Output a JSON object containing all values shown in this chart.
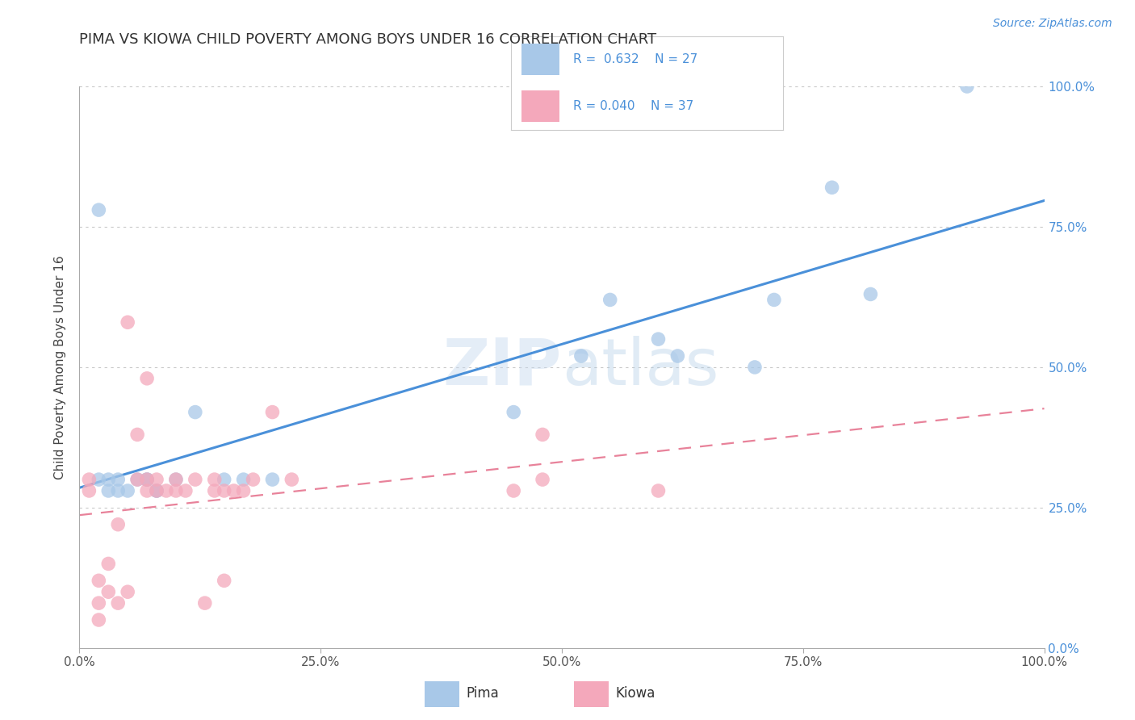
{
  "title": "PIMA VS KIOWA CHILD POVERTY AMONG BOYS UNDER 16 CORRELATION CHART",
  "source": "Source: ZipAtlas.com",
  "ylabel": "Child Poverty Among Boys Under 16",
  "pima_R": 0.632,
  "pima_N": 27,
  "kiowa_R": 0.04,
  "kiowa_N": 37,
  "pima_color": "#A8C8E8",
  "kiowa_color": "#F4A8BB",
  "trendline_pima_color": "#4A90D9",
  "trendline_kiowa_color": "#E8829A",
  "watermark_text": "ZIPatlas",
  "pima_x": [
    0.02,
    0.03,
    0.04,
    0.05,
    0.06,
    0.07,
    0.08,
    0.02,
    0.03,
    0.04,
    0.07,
    0.08,
    0.1,
    0.12,
    0.15,
    0.17,
    0.2,
    0.45,
    0.52,
    0.55,
    0.6,
    0.62,
    0.7,
    0.72,
    0.78,
    0.82,
    0.92
  ],
  "pima_y": [
    0.3,
    0.28,
    0.3,
    0.28,
    0.3,
    0.3,
    0.28,
    0.78,
    0.3,
    0.28,
    0.3,
    0.28,
    0.3,
    0.42,
    0.3,
    0.3,
    0.3,
    0.42,
    0.52,
    0.62,
    0.55,
    0.52,
    0.5,
    0.62,
    0.82,
    0.63,
    1.0
  ],
  "kiowa_x": [
    0.01,
    0.01,
    0.02,
    0.02,
    0.02,
    0.03,
    0.03,
    0.04,
    0.04,
    0.05,
    0.05,
    0.06,
    0.06,
    0.07,
    0.07,
    0.07,
    0.08,
    0.08,
    0.09,
    0.1,
    0.1,
    0.11,
    0.12,
    0.13,
    0.14,
    0.14,
    0.15,
    0.15,
    0.16,
    0.17,
    0.18,
    0.2,
    0.22,
    0.45,
    0.48,
    0.48,
    0.6
  ],
  "kiowa_y": [
    0.28,
    0.3,
    0.05,
    0.08,
    0.12,
    0.1,
    0.15,
    0.08,
    0.22,
    0.58,
    0.1,
    0.3,
    0.38,
    0.48,
    0.28,
    0.3,
    0.28,
    0.3,
    0.28,
    0.28,
    0.3,
    0.28,
    0.3,
    0.08,
    0.28,
    0.3,
    0.28,
    0.12,
    0.28,
    0.28,
    0.3,
    0.42,
    0.3,
    0.28,
    0.3,
    0.38,
    0.28
  ],
  "xlim": [
    0.0,
    1.0
  ],
  "ylim": [
    0.0,
    1.0
  ],
  "background_color": "#FFFFFF"
}
